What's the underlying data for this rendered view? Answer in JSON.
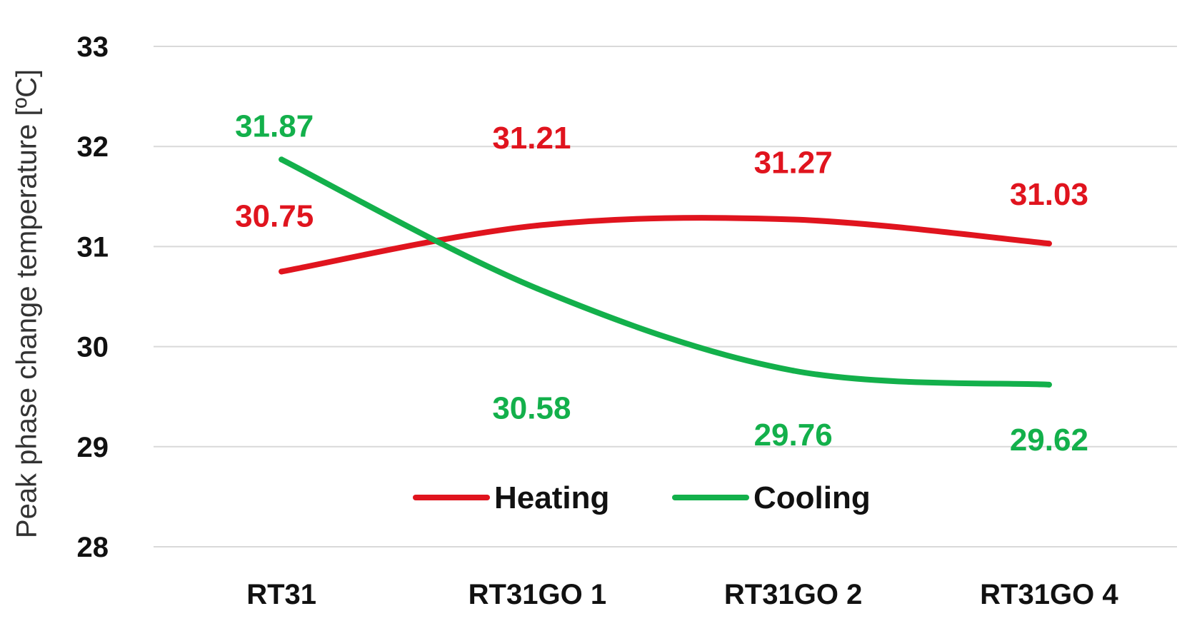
{
  "chart_data": {
    "type": "line",
    "categories": [
      "RT31",
      "RT31GO 1",
      "RT31GO 2",
      "RT31GO 4"
    ],
    "series": [
      {
        "name": "Heating",
        "values": [
          30.75,
          31.21,
          31.27,
          31.03
        ],
        "color": "#e0141e",
        "labels": [
          "30.75",
          "31.21",
          "31.27",
          "31.03"
        ]
      },
      {
        "name": "Cooling",
        "values": [
          31.87,
          30.58,
          29.76,
          29.62
        ],
        "color": "#13b04b",
        "labels": [
          "31.87",
          "30.58",
          "29.76",
          "29.62"
        ]
      }
    ],
    "ylabel": "Peak phase change temperature [ºC]",
    "xlabel": "",
    "ylim": [
      28,
      33
    ],
    "yticks": [
      "28",
      "29",
      "30",
      "31",
      "32",
      "33"
    ],
    "grid": true,
    "smooth": true,
    "legend_position": "bottom-center",
    "gridline_color": "#d9d9d9"
  }
}
